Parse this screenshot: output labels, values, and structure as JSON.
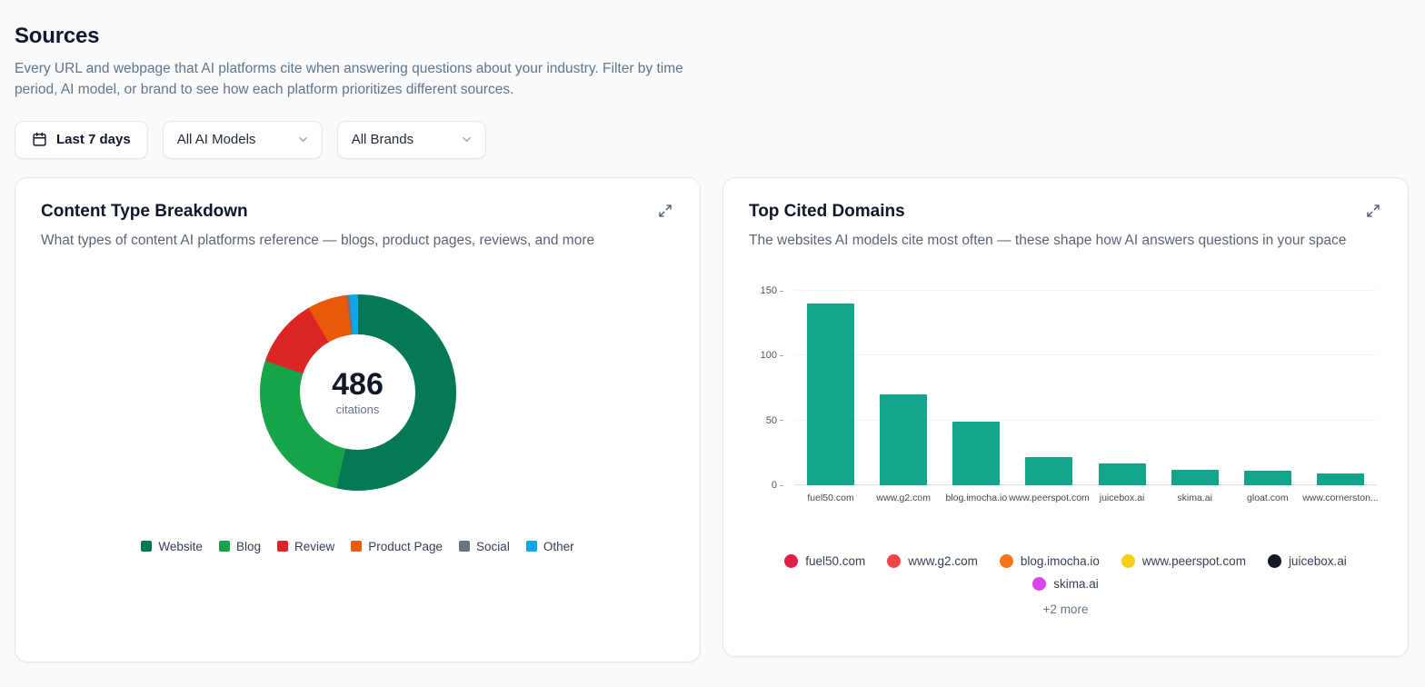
{
  "page": {
    "title": "Sources",
    "subtitle": "Every URL and webpage that AI platforms cite when answering questions about your industry. Filter by time period, AI model, or brand to see how each platform prioritizes different sources."
  },
  "filters": {
    "date_range": "Last 7 days",
    "model_select": "All AI Models",
    "brand_select": "All Brands"
  },
  "content_type_card": {
    "title": "Content Type Breakdown",
    "subtitle": "What types of content AI platforms reference — blogs, product pages, reviews, and more",
    "center_value": "486",
    "center_label": "citations"
  },
  "top_domains_card": {
    "title": "Top Cited Domains",
    "subtitle": "The websites AI models cite most often — these shape how AI answers questions in your space",
    "more_label": "+2 more",
    "domains": [
      {
        "label": "fuel50.com",
        "color": "#e11d48"
      },
      {
        "label": "www.g2.com",
        "color": "#ef4444"
      },
      {
        "label": "blog.imocha.io",
        "color": "#f97316"
      },
      {
        "label": "www.peerspot.com",
        "color": "#facc15"
      },
      {
        "label": "juicebox.ai",
        "color": "#111827"
      },
      {
        "label": "skima.ai",
        "color": "#d946ef"
      }
    ]
  },
  "chart_data": [
    {
      "type": "pie",
      "title": "Content Type Breakdown",
      "center_total": 486,
      "center_label": "citations",
      "legend_position": "bottom",
      "slices": [
        {
          "label": "Website",
          "value": 260,
          "color": "#047857"
        },
        {
          "label": "Blog",
          "value": 130,
          "color": "#16a34a"
        },
        {
          "label": "Review",
          "value": 55,
          "color": "#dc2626"
        },
        {
          "label": "Product Page",
          "value": 32,
          "color": "#ea580c"
        },
        {
          "label": "Social",
          "value": 2,
          "color": "#6b7280"
        },
        {
          "label": "Other",
          "value": 7,
          "color": "#0ea5e9"
        }
      ]
    },
    {
      "type": "bar",
      "title": "Top Cited Domains",
      "categories": [
        "fuel50.com",
        "www.g2.com",
        "blog.imocha.io",
        "www.peerspot.com",
        "juicebox.ai",
        "skima.ai",
        "gloat.com",
        "www.cornerston..."
      ],
      "values": [
        140,
        70,
        49,
        22,
        17,
        12,
        11,
        9
      ],
      "bar_color": "#14a38b",
      "xlabel": "",
      "ylabel": "",
      "ylim": [
        0,
        150
      ],
      "yticks": [
        0,
        50,
        100,
        150
      ],
      "grid": true
    }
  ]
}
